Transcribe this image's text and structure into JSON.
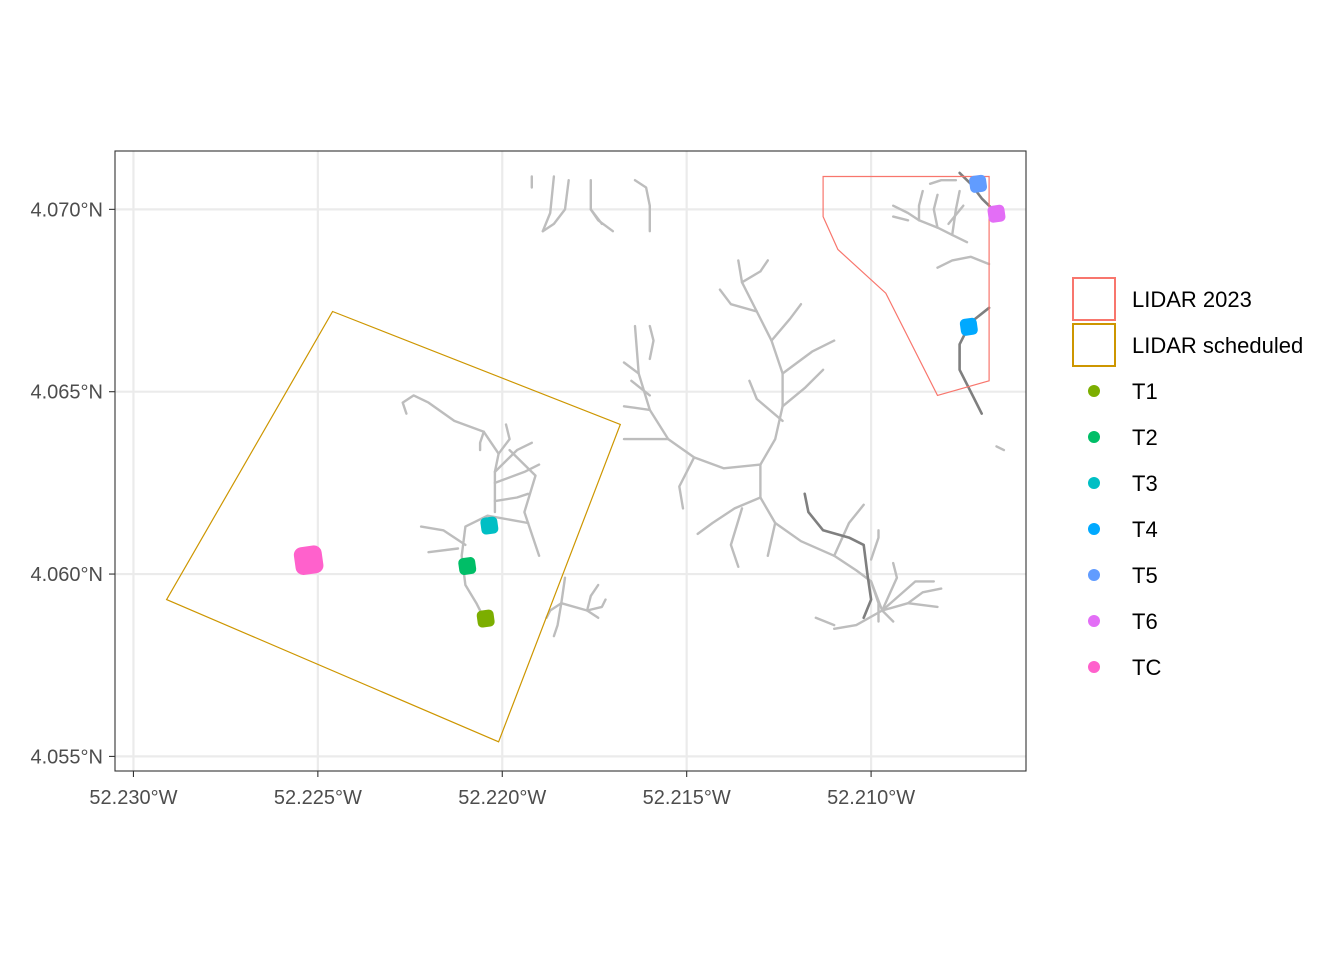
{
  "chart_data": {
    "type": "map",
    "x_axis": {
      "range": [
        -52.2305,
        -52.2058
      ],
      "ticks": [
        {
          "value": -52.23,
          "label": "52.230°W"
        },
        {
          "value": -52.225,
          "label": "52.225°W"
        },
        {
          "value": -52.22,
          "label": "52.220°W"
        },
        {
          "value": -52.215,
          "label": "52.215°W"
        },
        {
          "value": -52.21,
          "label": "52.210°W"
        }
      ]
    },
    "y_axis": {
      "range": [
        4.0546,
        4.0716
      ],
      "ticks": [
        {
          "value": 4.055,
          "label": "4.055°N"
        },
        {
          "value": 4.06,
          "label": "4.060°N"
        },
        {
          "value": 4.065,
          "label": "4.065°N"
        },
        {
          "value": 4.07,
          "label": "4.070°N"
        }
      ]
    },
    "grid": true,
    "legend_position": "right",
    "polygons": [
      {
        "name": "LIDAR 2023",
        "color": "#F8766D",
        "coords": [
          [
            -52.2113,
            4.0709
          ],
          [
            -52.2068,
            4.0709
          ],
          [
            -52.2068,
            4.0653
          ],
          [
            -52.2082,
            4.0649
          ],
          [
            -52.2096,
            4.0677
          ],
          [
            -52.2109,
            4.0689
          ],
          [
            -52.2113,
            4.0698
          ],
          [
            -52.2113,
            4.0709
          ]
        ]
      },
      {
        "name": "LIDAR scheduled",
        "color": "#CD9600",
        "coords": [
          [
            -52.2246,
            4.0672
          ],
          [
            -52.2168,
            4.0641
          ],
          [
            -52.2201,
            4.0554
          ],
          [
            -52.2291,
            4.0593
          ],
          [
            -52.2246,
            4.0672
          ]
        ]
      }
    ],
    "points": [
      {
        "name": "T1",
        "lon": -52.22045,
        "lat": 4.05878,
        "color": "#7CAE00"
      },
      {
        "name": "T2",
        "lon": -52.22095,
        "lat": 4.06022,
        "color": "#00BE67"
      },
      {
        "name": "T3",
        "lon": -52.22035,
        "lat": 4.06133,
        "color": "#00BFC4"
      },
      {
        "name": "T4",
        "lon": -52.20735,
        "lat": 4.06678,
        "color": "#00A9FF"
      },
      {
        "name": "T5",
        "lon": -52.2071,
        "lat": 4.0707,
        "color": "#619CFF"
      },
      {
        "name": "T6",
        "lon": -52.2066,
        "lat": 4.06988,
        "color": "#E36EF6"
      },
      {
        "name": "TC",
        "lon": -52.22525,
        "lat": 4.06038,
        "color": "#FF61CC"
      }
    ],
    "streams_light": [
      [
        [
          -52.2193,
          4.0614
        ],
        [
          -52.2204,
          4.0616
        ],
        [
          -52.221,
          4.0613
        ],
        [
          -52.2211,
          4.0605
        ],
        [
          -52.221,
          4.0597
        ],
        [
          -52.2207,
          4.0592
        ],
        [
          -52.2205,
          4.0588
        ]
      ],
      [
        [
          -52.2202,
          4.0617
        ],
        [
          -52.2202,
          4.0628
        ],
        [
          -52.2201,
          4.0633
        ],
        [
          -52.2205,
          4.0639
        ],
        [
          -52.2213,
          4.0642
        ],
        [
          -52.222,
          4.0647
        ],
        [
          -52.2224,
          4.0649
        ],
        [
          -52.2227,
          4.0647
        ],
        [
          -52.2226,
          4.0644
        ]
      ],
      [
        [
          -52.2202,
          4.0625
        ],
        [
          -52.2194,
          4.0628
        ],
        [
          -52.219,
          4.063
        ]
      ],
      [
        [
          -52.2202,
          4.0628
        ],
        [
          -52.2196,
          4.0634
        ],
        [
          -52.2192,
          4.0636
        ]
      ],
      [
        [
          -52.2201,
          4.0633
        ],
        [
          -52.2198,
          4.0637
        ],
        [
          -52.2199,
          4.0641
        ]
      ],
      [
        [
          -52.2205,
          4.0639
        ],
        [
          -52.2206,
          4.0636
        ],
        [
          -52.2206,
          4.0634
        ]
      ],
      [
        [
          -52.2202,
          4.062
        ],
        [
          -52.2196,
          4.0621
        ],
        [
          -52.2193,
          4.0622
        ]
      ],
      [
        [
          -52.221,
          4.0608
        ],
        [
          -52.2216,
          4.0612
        ],
        [
          -52.2222,
          4.0613
        ]
      ],
      [
        [
          -52.2212,
          4.0607
        ],
        [
          -52.222,
          4.0606
        ]
      ],
      [
        [
          -52.219,
          4.0605
        ],
        [
          -52.2194,
          4.0617
        ],
        [
          -52.2191,
          4.0627
        ],
        [
          -52.2198,
          4.0634
        ]
      ],
      [
        [
          -52.213,
          4.063
        ],
        [
          -52.214,
          4.0629
        ],
        [
          -52.2148,
          4.0632
        ],
        [
          -52.2155,
          4.0637
        ],
        [
          -52.216,
          4.0645
        ],
        [
          -52.2163,
          4.0655
        ],
        [
          -52.2164,
          4.0668
        ]
      ],
      [
        [
          -52.213,
          4.063
        ],
        [
          -52.2126,
          4.0637
        ],
        [
          -52.2124,
          4.0646
        ],
        [
          -52.2124,
          4.0655
        ],
        [
          -52.2127,
          4.0664
        ],
        [
          -52.2131,
          4.0672
        ],
        [
          -52.2135,
          4.068
        ],
        [
          -52.2136,
          4.0686
        ]
      ],
      [
        [
          -52.213,
          4.063
        ],
        [
          -52.213,
          4.0621
        ],
        [
          -52.2126,
          4.0614
        ],
        [
          -52.2119,
          4.0609
        ],
        [
          -52.211,
          4.0605
        ],
        [
          -52.2104,
          4.0601
        ],
        [
          -52.21,
          4.0598
        ],
        [
          -52.2097,
          4.059
        ],
        [
          -52.2094,
          4.0587
        ]
      ],
      [
        [
          -52.2155,
          4.0637
        ],
        [
          -52.2162,
          4.0637
        ],
        [
          -52.2167,
          4.0637
        ]
      ],
      [
        [
          -52.216,
          4.0645
        ],
        [
          -52.2167,
          4.0646
        ]
      ],
      [
        [
          -52.216,
          4.0649
        ],
        [
          -52.2165,
          4.0653
        ]
      ],
      [
        [
          -52.2163,
          4.0655
        ],
        [
          -52.2167,
          4.0658
        ]
      ],
      [
        [
          -52.216,
          4.0659
        ],
        [
          -52.2159,
          4.0664
        ],
        [
          -52.216,
          4.0668
        ]
      ],
      [
        [
          -52.2148,
          4.0632
        ],
        [
          -52.2152,
          4.0624
        ],
        [
          -52.2151,
          4.0618
        ]
      ],
      [
        [
          -52.213,
          4.0621
        ],
        [
          -52.2137,
          4.0618
        ],
        [
          -52.2143,
          4.0614
        ],
        [
          -52.2147,
          4.0611
        ]
      ],
      [
        [
          -52.2135,
          4.0618
        ],
        [
          -52.2138,
          4.0608
        ],
        [
          -52.2136,
          4.0602
        ]
      ],
      [
        [
          -52.2126,
          4.0614
        ],
        [
          -52.2128,
          4.0605
        ]
      ],
      [
        [
          -52.2124,
          4.0646
        ],
        [
          -52.2118,
          4.0651
        ],
        [
          -52.2113,
          4.0656
        ]
      ],
      [
        [
          -52.2124,
          4.0655
        ],
        [
          -52.2116,
          4.0661
        ],
        [
          -52.211,
          4.0664
        ]
      ],
      [
        [
          -52.2127,
          4.0664
        ],
        [
          -52.2122,
          4.067
        ],
        [
          -52.2119,
          4.0674
        ]
      ],
      [
        [
          -52.2131,
          4.0672
        ],
        [
          -52.2138,
          4.0674
        ],
        [
          -52.2141,
          4.0678
        ]
      ],
      [
        [
          -52.2135,
          4.068
        ],
        [
          -52.213,
          4.0683
        ],
        [
          -52.2128,
          4.0686
        ]
      ],
      [
        [
          -52.2124,
          4.0642
        ],
        [
          -52.2131,
          4.0648
        ],
        [
          -52.2133,
          4.0653
        ]
      ],
      [
        [
          -52.211,
          4.0605
        ],
        [
          -52.2106,
          4.0614
        ],
        [
          -52.2102,
          4.0619
        ]
      ],
      [
        [
          -52.21,
          4.0598
        ],
        [
          -52.2098,
          4.0592
        ],
        [
          -52.2098,
          4.0587
        ]
      ],
      [
        [
          -52.2097,
          4.059
        ],
        [
          -52.2104,
          4.0586
        ],
        [
          -52.211,
          4.0585
        ]
      ],
      [
        [
          -52.2097,
          4.059
        ],
        [
          -52.209,
          4.0592
        ],
        [
          -52.2082,
          4.0591
        ]
      ],
      [
        [
          -52.2097,
          4.059
        ],
        [
          -52.2093,
          4.0599
        ],
        [
          -52.2094,
          4.0603
        ]
      ],
      [
        [
          -52.2097,
          4.059
        ],
        [
          -52.2088,
          4.0598
        ],
        [
          -52.2083,
          4.0598
        ]
      ],
      [
        [
          -52.209,
          4.0592
        ],
        [
          -52.2086,
          4.0595
        ],
        [
          -52.2081,
          4.0596
        ]
      ],
      [
        [
          -52.211,
          4.0586
        ],
        [
          -52.2115,
          4.0588
        ]
      ],
      [
        [
          -52.21,
          4.0604
        ],
        [
          -52.2098,
          4.061
        ],
        [
          -52.2098,
          4.0612
        ]
      ],
      [
        [
          -52.2183,
          4.0599
        ],
        [
          -52.2184,
          4.0592
        ],
        [
          -52.2185,
          4.0586
        ],
        [
          -52.2186,
          4.0583
        ]
      ],
      [
        [
          -52.2184,
          4.0592
        ],
        [
          -52.2187,
          4.059
        ],
        [
          -52.2188,
          4.0588
        ]
      ],
      [
        [
          -52.2184,
          4.0592
        ],
        [
          -52.2177,
          4.059
        ],
        [
          -52.2174,
          4.0588
        ]
      ],
      [
        [
          -52.2177,
          4.059
        ],
        [
          -52.2176,
          4.0594
        ],
        [
          -52.2174,
          4.0597
        ]
      ],
      [
        [
          -52.2177,
          4.059
        ],
        [
          -52.2173,
          4.0591
        ],
        [
          -52.2172,
          4.0593
        ]
      ],
      [
        [
          -52.2186,
          4.0709
        ],
        [
          -52.2187,
          4.0699
        ],
        [
          -52.2189,
          4.0694
        ]
      ],
      [
        [
          -52.2189,
          4.0694
        ],
        [
          -52.2186,
          4.0696
        ],
        [
          -52.2183,
          4.07
        ],
        [
          -52.2182,
          4.0708
        ]
      ],
      [
        [
          -52.2176,
          4.0708
        ],
        [
          -52.2176,
          4.07
        ],
        [
          -52.2174,
          4.0697
        ],
        [
          -52.217,
          4.0694
        ]
      ],
      [
        [
          -52.2176,
          4.07
        ],
        [
          -52.2173,
          4.0696
        ]
      ],
      [
        [
          -52.2164,
          4.0708
        ],
        [
          -52.2161,
          4.0706
        ],
        [
          -52.216,
          4.0701
        ],
        [
          -52.216,
          4.0694
        ]
      ],
      [
        [
          -52.2192,
          4.0709
        ],
        [
          -52.2192,
          4.0706
        ]
      ],
      [
        [
          -52.2094,
          4.0701
        ],
        [
          -52.209,
          4.0699
        ],
        [
          -52.2087,
          4.0697
        ],
        [
          -52.2082,
          4.0695
        ],
        [
          -52.2078,
          4.0693
        ],
        [
          -52.2074,
          4.0691
        ]
      ],
      [
        [
          -52.2087,
          4.0697
        ],
        [
          -52.2087,
          4.0701
        ],
        [
          -52.2086,
          4.0705
        ]
      ],
      [
        [
          -52.2082,
          4.0695
        ],
        [
          -52.2083,
          4.07
        ],
        [
          -52.2082,
          4.0704
        ]
      ],
      [
        [
          -52.2078,
          4.0693
        ],
        [
          -52.2077,
          4.07
        ],
        [
          -52.2076,
          4.0705
        ]
      ],
      [
        [
          -52.2084,
          4.0707
        ],
        [
          -52.2081,
          4.0708
        ],
        [
          -52.2077,
          4.0708
        ]
      ],
      [
        [
          -52.2079,
          4.0696
        ],
        [
          -52.2075,
          4.0701
        ]
      ],
      [
        [
          -52.2094,
          4.0698
        ],
        [
          -52.209,
          4.0697
        ]
      ],
      [
        [
          -52.2082,
          4.0684
        ],
        [
          -52.2078,
          4.0686
        ],
        [
          -52.2073,
          4.0687
        ],
        [
          -52.2068,
          4.0685
        ]
      ],
      [
        [
          -52.2064,
          4.0634
        ],
        [
          -52.2066,
          4.0635
        ]
      ]
    ],
    "streams_dark": [
      [
        [
          -52.2076,
          4.071
        ],
        [
          -52.2073,
          4.0707
        ],
        [
          -52.207,
          4.0703
        ],
        [
          -52.2066,
          4.0699
        ]
      ],
      [
        [
          -52.2068,
          4.0673
        ],
        [
          -52.2073,
          4.0669
        ],
        [
          -52.2076,
          4.0663
        ],
        [
          -52.2076,
          4.0656
        ],
        [
          -52.2073,
          4.065
        ],
        [
          -52.207,
          4.0644
        ]
      ],
      [
        [
          -52.2118,
          4.0622
        ],
        [
          -52.2117,
          4.0617
        ],
        [
          -52.2113,
          4.0612
        ],
        [
          -52.2106,
          4.061
        ],
        [
          -52.2102,
          4.0608
        ],
        [
          -52.2101,
          4.06
        ],
        [
          -52.21,
          4.0593
        ],
        [
          -52.2102,
          4.0588
        ]
      ]
    ]
  }
}
